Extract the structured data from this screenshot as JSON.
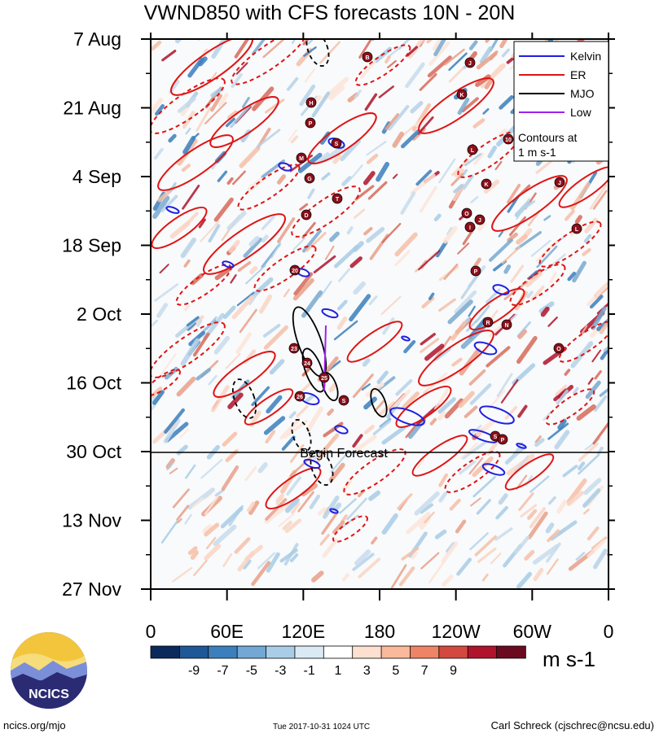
{
  "chart_data": {
    "type": "heatmap",
    "title": "VWND850 with CFS forecasts  10N - 20N",
    "x_ticks": [
      "0",
      "60E",
      "120E",
      "180",
      "120W",
      "60W",
      "0"
    ],
    "y_ticks": [
      "7 Aug",
      "21 Aug",
      "4 Sep",
      "18 Sep",
      "2 Oct",
      "16 Oct",
      "30 Oct",
      "13 Nov",
      "27 Nov"
    ],
    "forecast_label": "Begin Forecast",
    "forecast_start": "30 Oct",
    "colorbar": {
      "ticks": [
        "-9",
        "-7",
        "-5",
        "-3",
        "-1",
        "1",
        "3",
        "5",
        "7",
        "9"
      ],
      "units": "m s-1",
      "colors": [
        "#0b2a5b",
        "#1f5896",
        "#3c7fbd",
        "#72a8d3",
        "#a9cde6",
        "#d9eaf5",
        "#ffffff",
        "#fde0cf",
        "#f9b99a",
        "#ed8465",
        "#d3493f",
        "#b0132c",
        "#6b0a1f"
      ]
    },
    "legend": {
      "entries": [
        {
          "name": "Kelvin",
          "color": "#1f1fe0"
        },
        {
          "name": "ER",
          "color": "#e01414"
        },
        {
          "name": "MJO",
          "color": "#000000"
        },
        {
          "name": "Low",
          "color": "#a020f0"
        }
      ],
      "note_line1": "Contours at",
      "note_line2": "1 m s-1"
    },
    "storm_labels": [
      "B",
      "J",
      "K",
      "H",
      "P",
      "S",
      "M",
      "G",
      "L",
      "10",
      "K",
      "J",
      "T",
      "D",
      "O",
      "I",
      "J",
      "L",
      "20",
      "P",
      "R",
      "N",
      "O",
      "23",
      "24",
      "25",
      "26",
      "S",
      "S",
      "P"
    ]
  },
  "logo": {
    "text": "NCICS"
  },
  "footer": {
    "left": "ncics.org/mjo",
    "center": "Tue 2017-10-31 1024 UTC",
    "right": "Carl Schreck (cjschrec@ncsu.edu)"
  }
}
